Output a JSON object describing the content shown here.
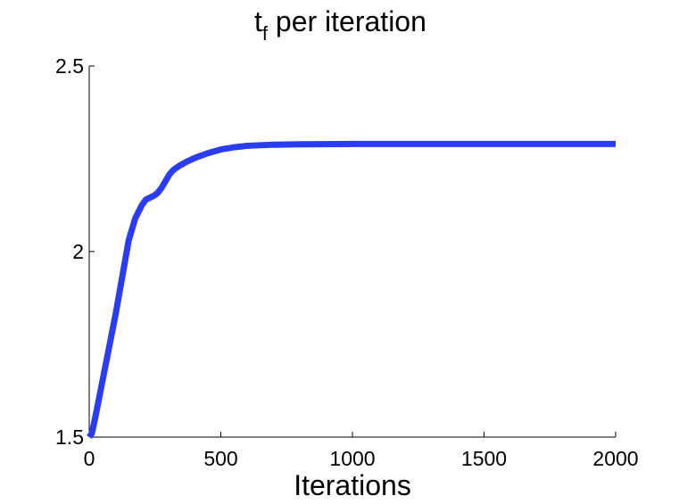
{
  "chart_data": {
    "type": "line",
    "title": {
      "base": "t",
      "subscript": "f",
      "rest": " per iteration"
    },
    "xlabel": "Iterations",
    "ylabel": "",
    "xlim": [
      0,
      2000
    ],
    "ylim": [
      1.5,
      2.5
    ],
    "xticks": [
      0,
      500,
      1000,
      1500,
      2000
    ],
    "xtick_labels": [
      "0",
      "500",
      "1000",
      "1500",
      "2000"
    ],
    "yticks": [
      1.5,
      2,
      2.5
    ],
    "ytick_labels": [
      "1.5",
      "2",
      "2.5"
    ],
    "grid": false,
    "series": [
      {
        "color": "#2b3cf5",
        "x": [
          0,
          10,
          25,
          50,
          75,
          100,
          125,
          150,
          175,
          200,
          215,
          230,
          245,
          260,
          275,
          290,
          305,
          320,
          340,
          370,
          400,
          450,
          500,
          550,
          600,
          700,
          800,
          1000,
          1200,
          1500,
          2000
        ],
        "y": [
          1.5,
          1.51,
          1.56,
          1.65,
          1.74,
          1.83,
          1.93,
          2.03,
          2.09,
          2.125,
          2.14,
          2.145,
          2.15,
          2.158,
          2.172,
          2.19,
          2.208,
          2.22,
          2.23,
          2.242,
          2.252,
          2.265,
          2.275,
          2.281,
          2.285,
          2.288,
          2.289,
          2.29,
          2.29,
          2.29,
          2.29
        ]
      }
    ]
  }
}
